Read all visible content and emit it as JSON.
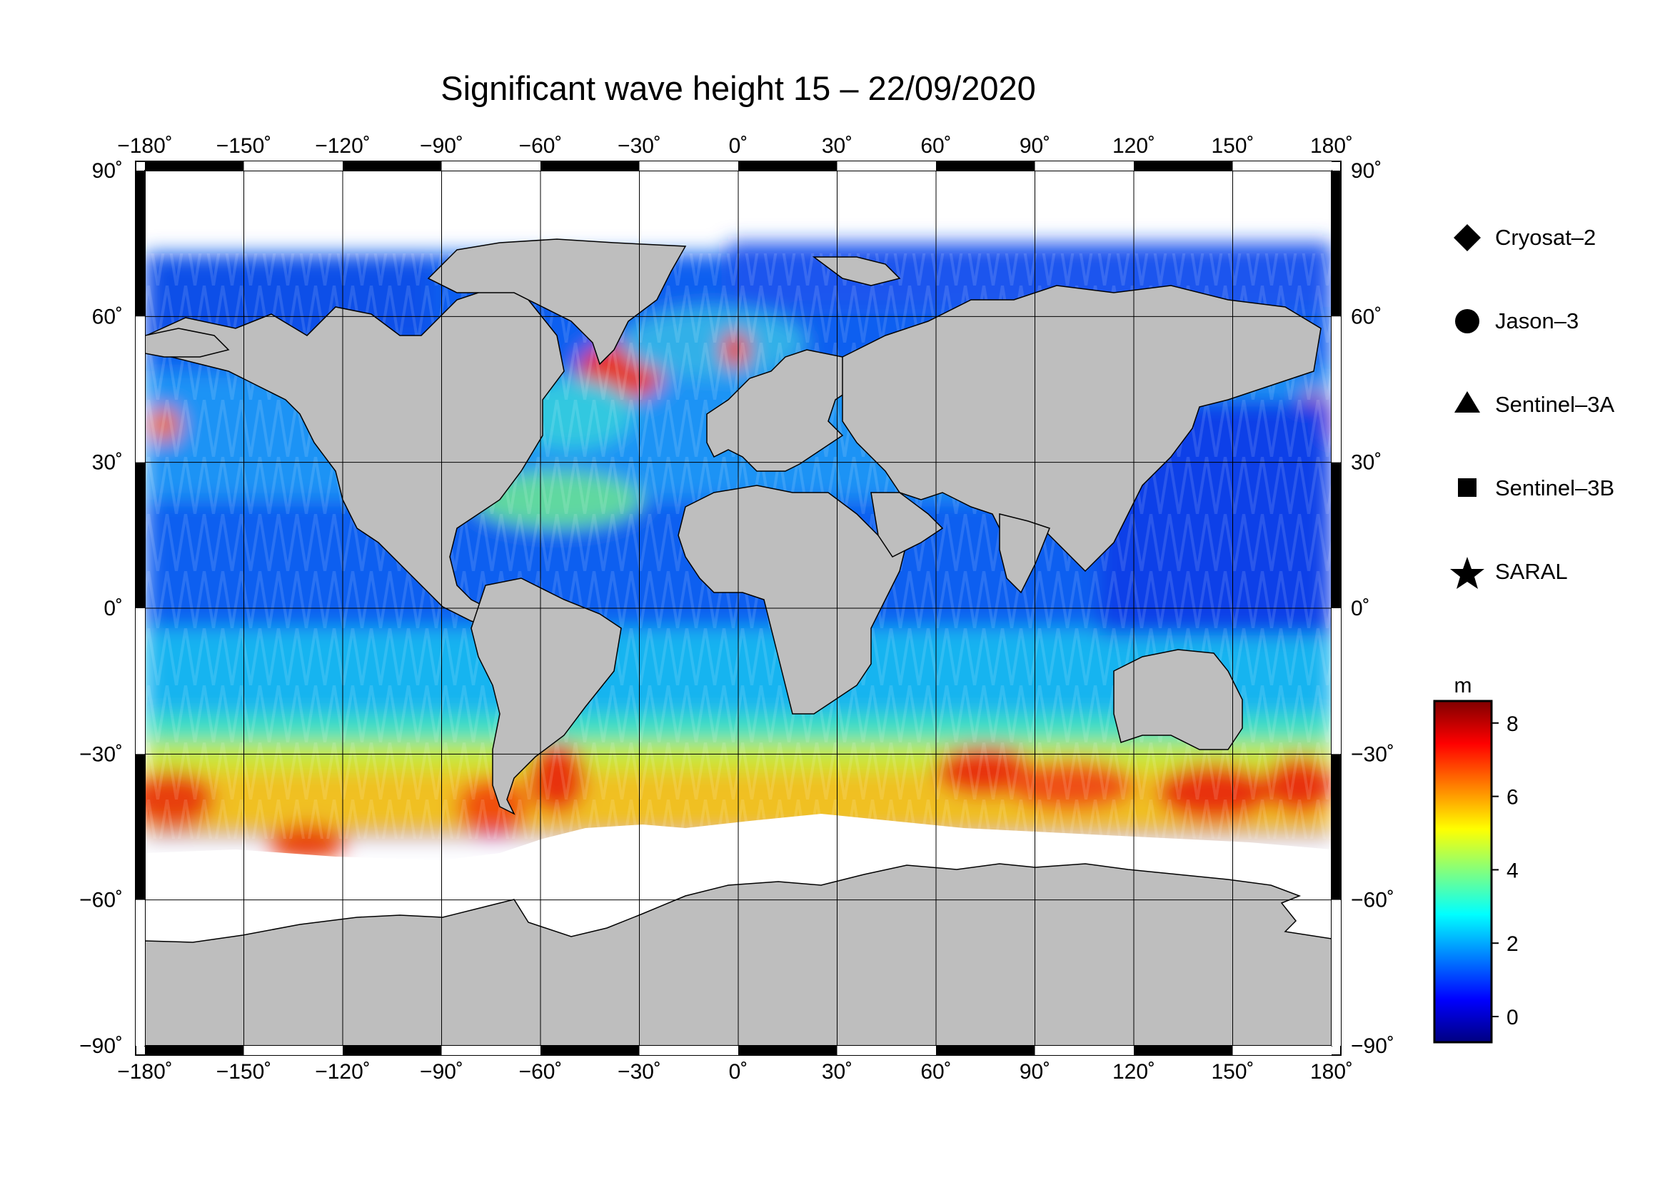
{
  "title": "Significant wave height 15 – 22/09/2020",
  "axes": {
    "lon_ticks": [
      "−180˚",
      "−150˚",
      "−120˚",
      "−90˚",
      "−60˚",
      "−30˚",
      "0˚",
      "30˚",
      "60˚",
      "90˚",
      "120˚",
      "150˚",
      "180˚"
    ],
    "lat_ticks_left": [
      "90˚",
      "60˚",
      "30˚",
      "0˚",
      "−30˚",
      "−60˚",
      "−90˚"
    ],
    "lat_ticks_right": [
      "90˚",
      "60˚",
      "30˚",
      "0˚",
      "−30˚",
      "−60˚",
      "−90˚"
    ],
    "lon_range": [
      -180,
      180
    ],
    "lat_range": [
      -90,
      90
    ],
    "grid": true
  },
  "legend": {
    "items": [
      {
        "label": "Cryosat–2",
        "symbol": "diamond-icon"
      },
      {
        "label": "Jason–3",
        "symbol": "circle-icon"
      },
      {
        "label": "Sentinel–3A",
        "symbol": "triangle-icon"
      },
      {
        "label": "Sentinel–3B",
        "symbol": "square-icon"
      },
      {
        "label": "SARAL",
        "symbol": "star-icon"
      }
    ]
  },
  "colorbar": {
    "unit": "m",
    "ticks": [
      "8",
      "6",
      "4",
      "2",
      "0"
    ],
    "range": [
      -0.7,
      8.6
    ],
    "colors": [
      "#000080",
      "#0000ff",
      "#0080ff",
      "#00ffff",
      "#80ff80",
      "#ffff00",
      "#ff8000",
      "#ff0000",
      "#800000"
    ]
  },
  "colors": {
    "land": "#bebebe",
    "ice": "#ffffff",
    "frame": "#000000"
  }
}
